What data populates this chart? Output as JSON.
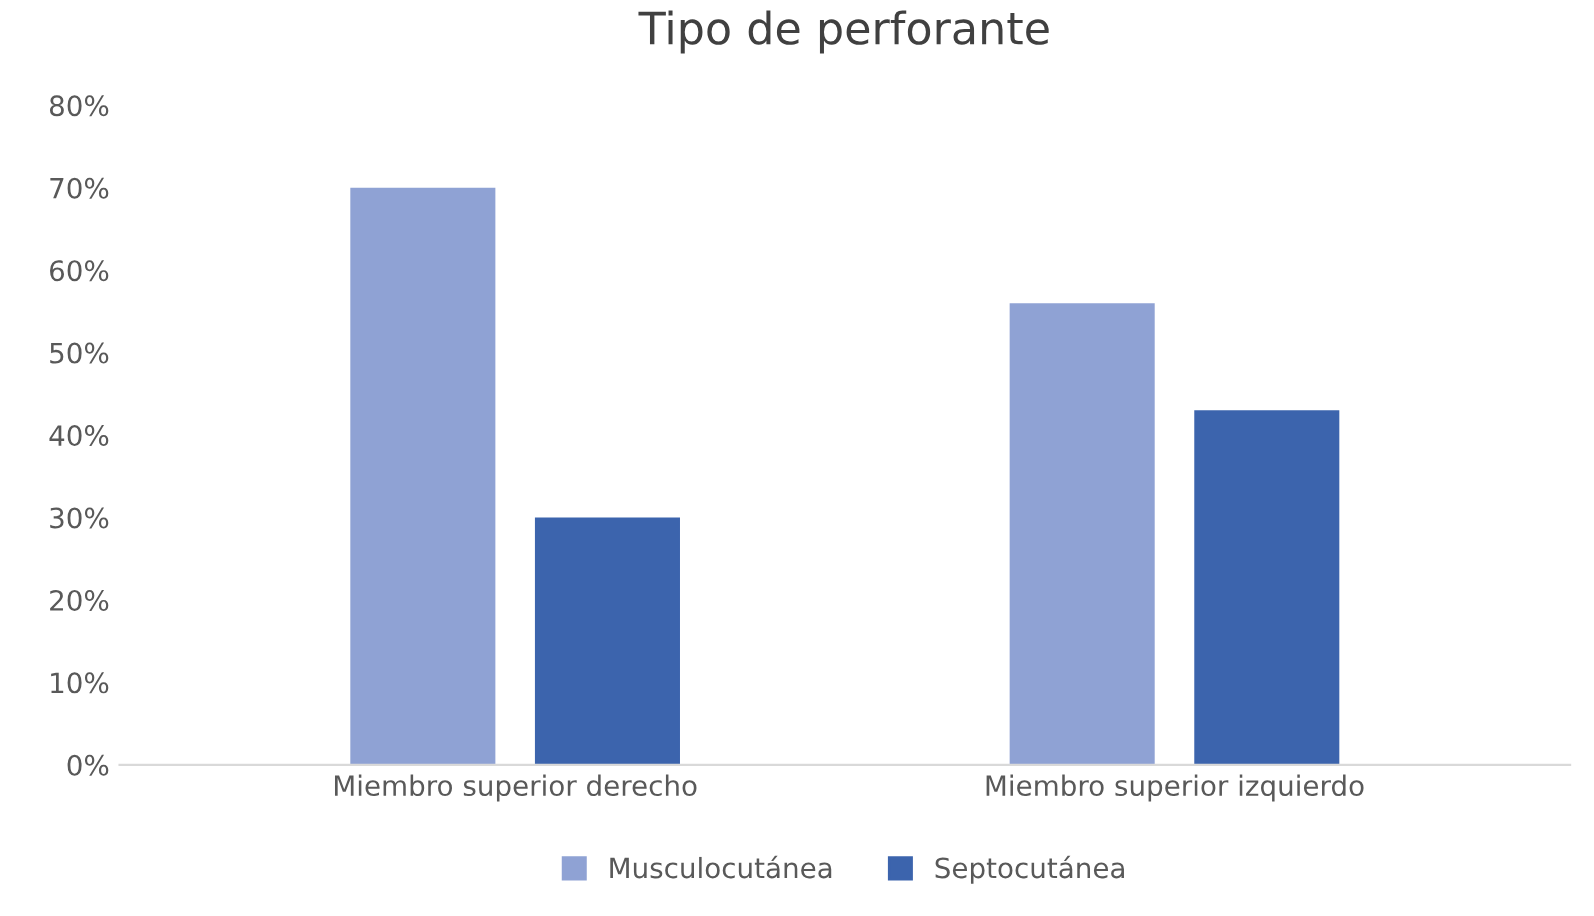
{
  "chart_data": {
    "type": "bar",
    "title": "Tipo de perforante",
    "categories": [
      "Miembro superior derecho",
      "Miembro superior izquierdo"
    ],
    "series": [
      {
        "name": "Musculocutánea",
        "color": "#8fa2d4",
        "values": [
          70,
          56
        ]
      },
      {
        "name": "Septocutánea",
        "color": "#3c64ad",
        "values": [
          30,
          43
        ]
      }
    ],
    "ylim": [
      0,
      80
    ],
    "yticks": [
      {
        "value": 0,
        "label": "0%"
      },
      {
        "value": 10,
        "label": "10%"
      },
      {
        "value": 20,
        "label": "20%"
      },
      {
        "value": 30,
        "label": "30%"
      },
      {
        "value": 40,
        "label": "40%"
      },
      {
        "value": 50,
        "label": "50%"
      },
      {
        "value": 60,
        "label": "60%"
      },
      {
        "value": 70,
        "label": "70%"
      },
      {
        "value": 80,
        "label": "80%"
      }
    ],
    "grid": false,
    "legend": "bottom"
  }
}
